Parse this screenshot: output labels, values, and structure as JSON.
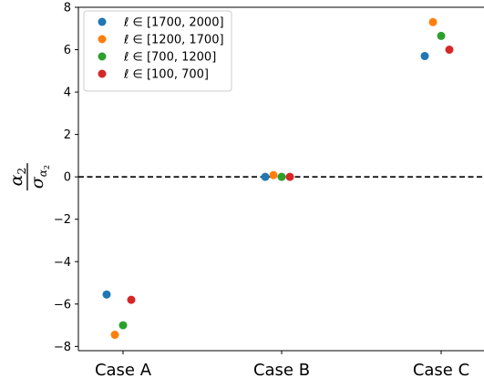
{
  "chart_data": {
    "type": "scatter",
    "categories": [
      "Case A",
      "Case B",
      "Case C"
    ],
    "ylim": [
      -8.2,
      8
    ],
    "yticks": [
      8,
      6,
      4,
      2,
      0,
      -2,
      -4,
      -6,
      -8
    ],
    "ytick_labels": [
      "8",
      "6",
      "4",
      "2",
      "0",
      "−2",
      "−4",
      "−6",
      "−8"
    ],
    "ylabel": {
      "numerator": "α",
      "numerator_sub": "2",
      "denominator": "σ",
      "denominator_sub": "α",
      "denominator_subsub": "2"
    },
    "reference_line": {
      "y": 0,
      "style": "dashed"
    },
    "grid": false,
    "legend_position": "top-left",
    "series": [
      {
        "name": "ℓ ∈ [1700, 2000]",
        "color": "#1f77b4",
        "values": [
          -5.55,
          0.0,
          5.7
        ]
      },
      {
        "name": "ℓ ∈ [1200, 1700]",
        "color": "#ff7f0e",
        "values": [
          -7.45,
          0.08,
          7.3
        ]
      },
      {
        "name": "ℓ ∈ [700, 1200]",
        "color": "#2ca02c",
        "values": [
          -7.0,
          0.0,
          6.65
        ]
      },
      {
        "name": "ℓ ∈ [100, 700]",
        "color": "#d62728",
        "values": [
          -5.8,
          0.0,
          6.0
        ]
      }
    ]
  }
}
